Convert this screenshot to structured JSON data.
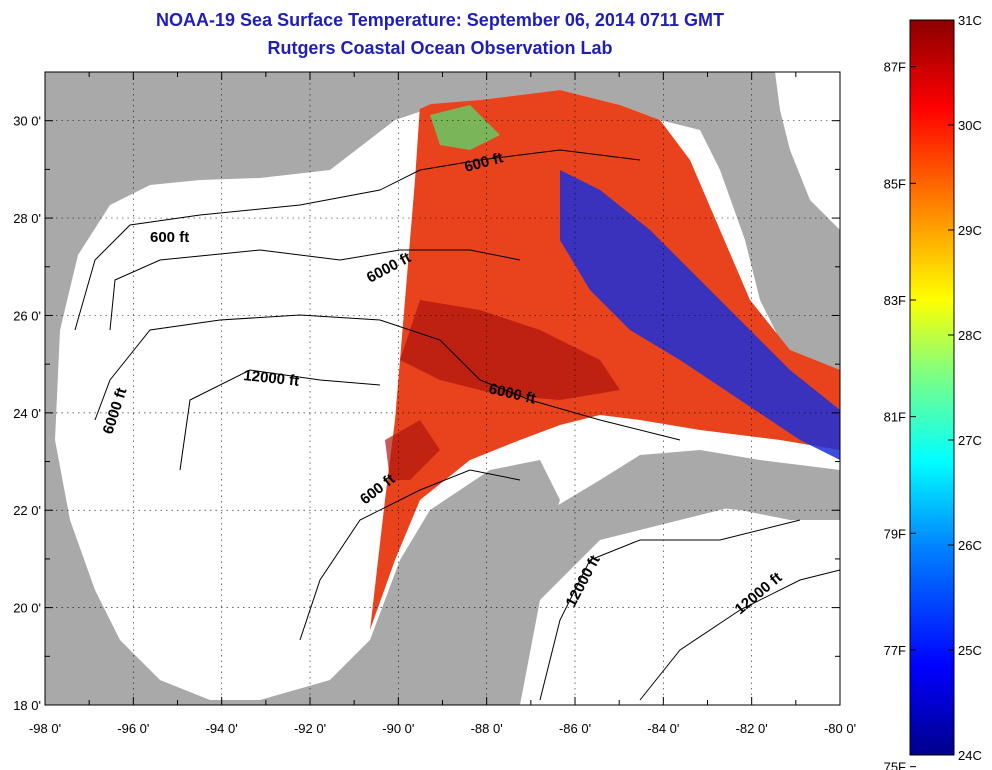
{
  "title": {
    "line1": "NOAA-19 Sea Surface Temperature:  September 06, 2014 0711 GMT",
    "line2": "Rutgers Coastal Ocean Observation Lab"
  },
  "axes": {
    "x_ticks": [
      "-98 0'",
      "-96 0'",
      "-94 0'",
      "-92 0'",
      "-90 0'",
      "-88 0'",
      "-86 0'",
      "-84 0'",
      "-82 0'",
      "-80 0'"
    ],
    "y_ticks": [
      "30 0'",
      "28 0'",
      "26 0'",
      "24 0'",
      "22 0'",
      "20 0'",
      "18 0'"
    ],
    "lon_range": [
      -98,
      -80
    ],
    "lat_range": [
      18,
      31
    ]
  },
  "contours": {
    "labels": [
      "600 ft",
      "600 ft",
      "6000 ft",
      "12000 ft",
      "6000 ft",
      "6000 ft",
      "600 ft",
      "12000 ft",
      "12000 ft"
    ]
  },
  "colorbar": {
    "celsius_labels": [
      "31C",
      "30C",
      "29C",
      "28C",
      "27C",
      "26C",
      "25C",
      "24C"
    ],
    "fahrenheit_labels": [
      "87F",
      "85F",
      "83F",
      "81F",
      "79F",
      "77F",
      "75F"
    ],
    "range_c": [
      24,
      31
    ],
    "colors": [
      "#00008b",
      "#0000ff",
      "#00bfff",
      "#00ffff",
      "#7fff7f",
      "#ffff00",
      "#ff7f00",
      "#ff0000",
      "#8b0000"
    ]
  },
  "map_colors": {
    "land": "#a9a9a9",
    "ocean_no_data": "#ffffff",
    "sst_warm": "#e8431c",
    "sst_hot": "#b0150f",
    "sst_cool": "#1b2fd8"
  }
}
